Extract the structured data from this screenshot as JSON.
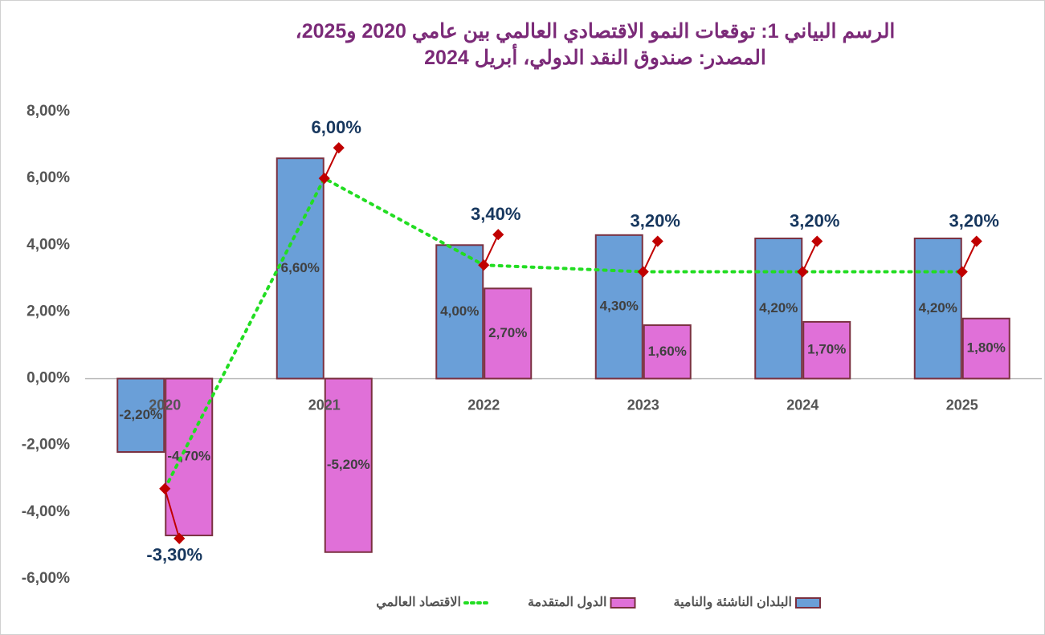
{
  "chart_data": {
    "type": "bar",
    "title": "الرسم البياني 1: توقعات النمو الاقتصادي العالمي بين عامي 2020 و2025، المصدر: صندوق النقد الدولي، أبريل 2024",
    "categories": [
      "2020",
      "2021",
      "2022",
      "2023",
      "2024",
      "2025"
    ],
    "series": [
      {
        "name": "البلدان الناشئة والنامية",
        "type": "bar",
        "color": "#6a9fd8",
        "values": [
          -2.2,
          6.6,
          4.0,
          4.3,
          4.2,
          4.2
        ],
        "value_labels": [
          "-2,20%",
          "6,60%",
          "4,00%",
          "4,30%",
          "4,20%",
          "4,20%"
        ]
      },
      {
        "name": "الدول المتقدمة",
        "type": "bar",
        "color": "#e070d8",
        "values": [
          -4.7,
          -5.2,
          2.7,
          1.6,
          1.7,
          1.8
        ],
        "value_labels": [
          "-4,70%",
          "-5,20%",
          "2,70%",
          "1,60%",
          "1,70%",
          "1,80%"
        ]
      },
      {
        "name": "الاقتصاد العالمي",
        "type": "line",
        "color": "#22dd22",
        "values": [
          -3.3,
          6.0,
          3.4,
          3.2,
          3.2,
          3.2
        ],
        "value_labels": [
          "-3,30%",
          "6,00%",
          "3,40%",
          "3,20%",
          "3,20%",
          "3,20%"
        ]
      }
    ],
    "ylim": [
      -6,
      8
    ],
    "yticks": [
      {
        "value": -6,
        "label": "-6,00%"
      },
      {
        "value": -4,
        "label": "-4,00%"
      },
      {
        "value": -2,
        "label": "-2,00%"
      },
      {
        "value": 0,
        "label": "0,00%"
      },
      {
        "value": 2,
        "label": "2,00%"
      },
      {
        "value": 4,
        "label": "4,00%"
      },
      {
        "value": 6,
        "label": "6,00%"
      },
      {
        "value": 8,
        "label": "8,00%"
      }
    ],
    "legend": "bottom"
  }
}
